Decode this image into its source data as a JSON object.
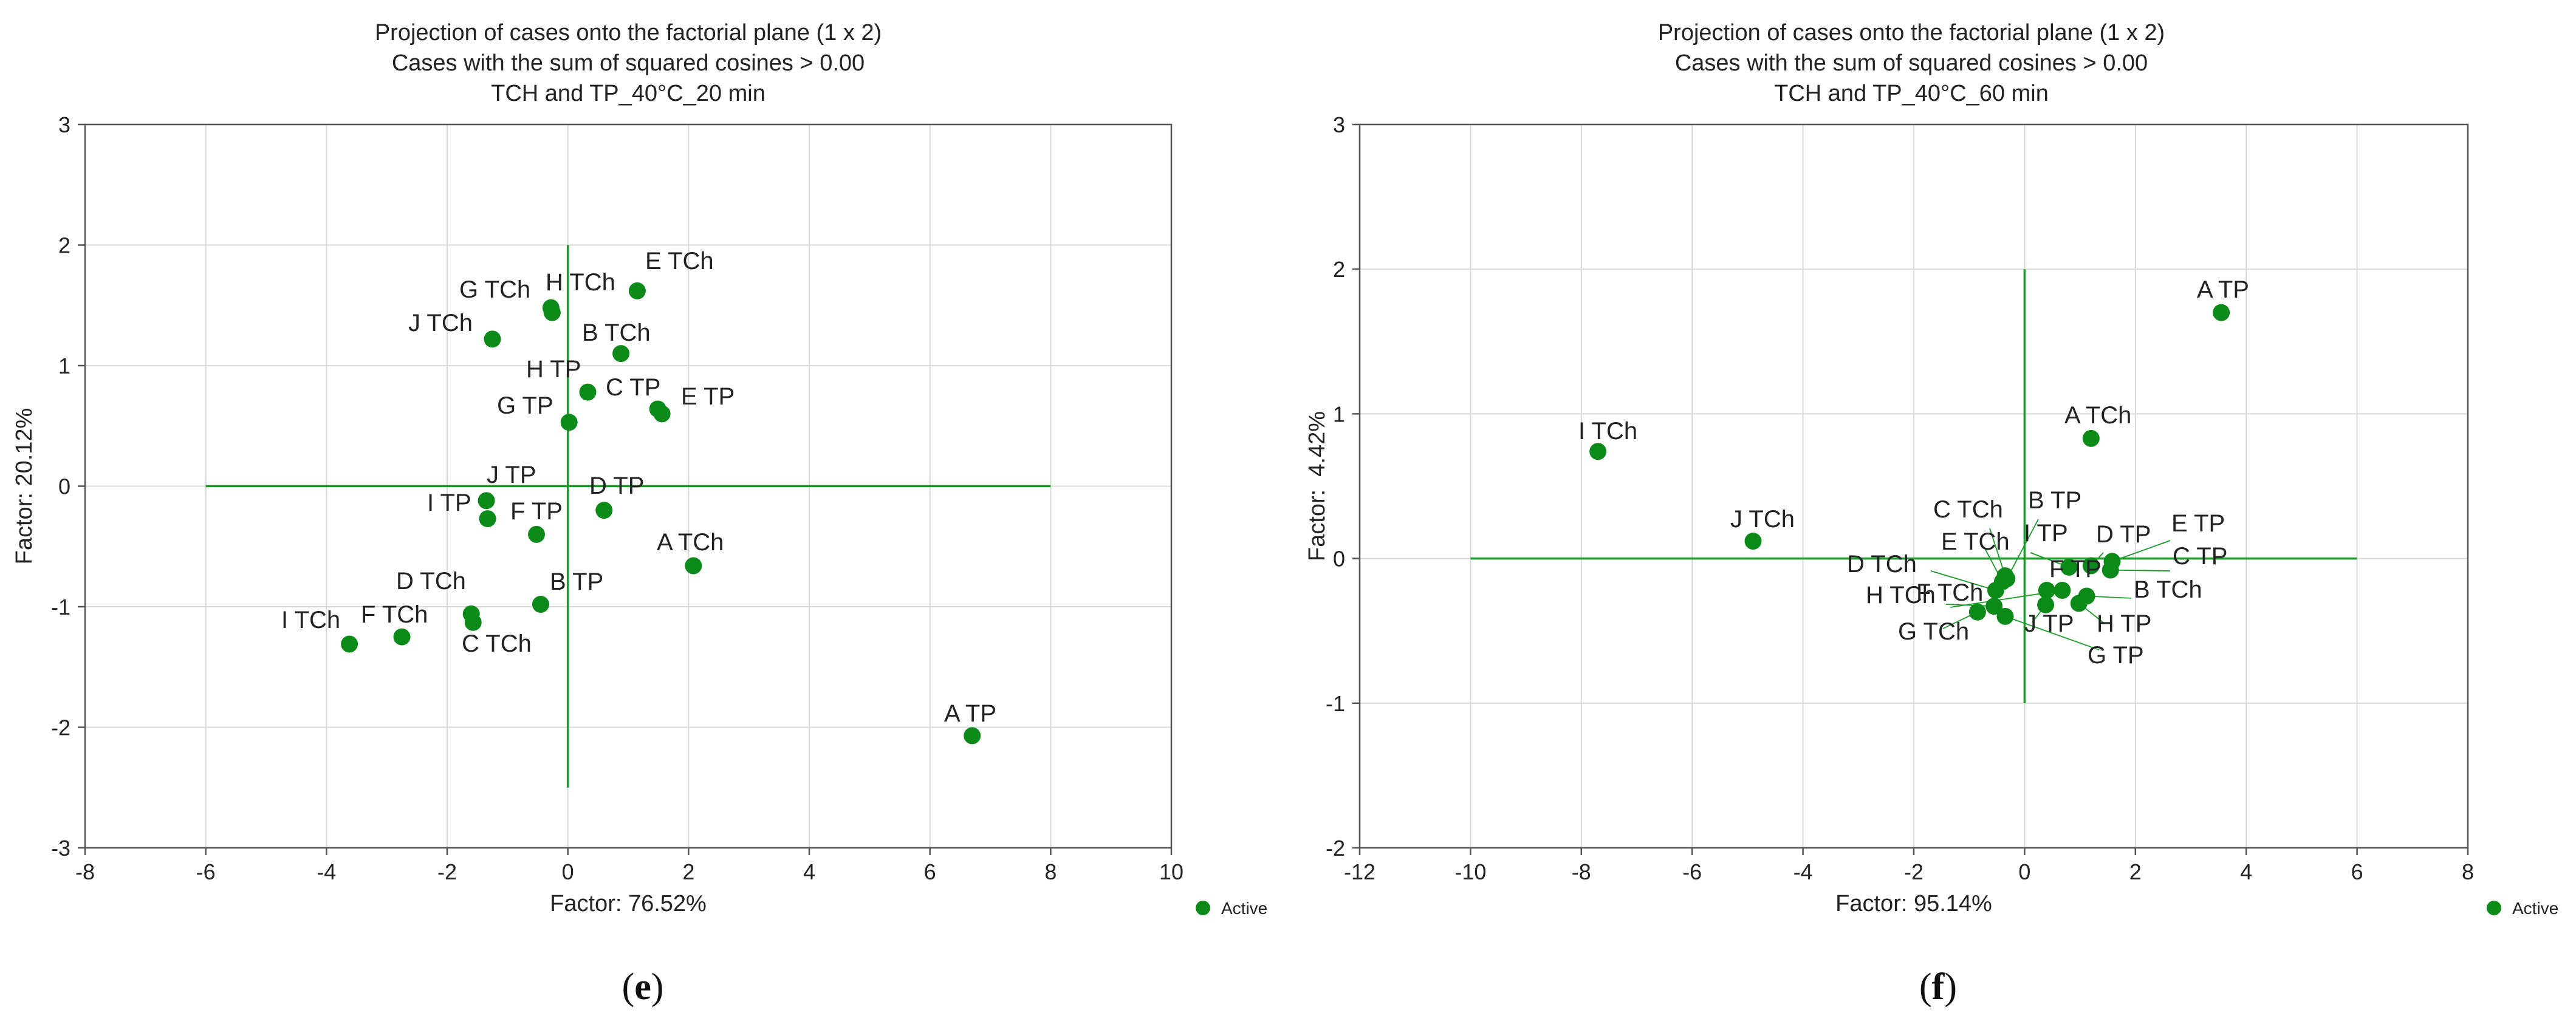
{
  "chart_data": [
    {
      "type": "scatter",
      "title": [
        "Projection of cases onto the factorial plane (1 x 2)",
        "Cases with the sum of squared cosines > 0.00",
        "TCH and TP_40°C_20 min"
      ],
      "xlabel": "Factor: 76.52%",
      "ylabel": "Factor: 20.12%",
      "xlim": [
        -8,
        10
      ],
      "ylim": [
        -3,
        3
      ],
      "xticks": [
        "-8",
        "-6",
        "-4",
        "-2",
        "0",
        "2",
        "4",
        "6",
        "8",
        "10"
      ],
      "yticks": [
        "-3",
        "-2",
        "-1",
        "0",
        "1",
        "2",
        "3"
      ],
      "grid": true,
      "legend": {
        "label": "Active",
        "position": "bottom-right"
      },
      "panel_label": "e",
      "axes_lines": {
        "h": [
          -6,
          8
        ],
        "v": [
          -2.5,
          2.0
        ]
      },
      "points": [
        {
          "label": "E TCh",
          "x": 1.15,
          "y": 1.62
        },
        {
          "label": "G TCh",
          "x": -0.28,
          "y": 1.48
        },
        {
          "label": "H TCh",
          "x": -0.26,
          "y": 1.44
        },
        {
          "label": "J TCh",
          "x": -1.25,
          "y": 1.22
        },
        {
          "label": "B TCh",
          "x": 0.88,
          "y": 1.1
        },
        {
          "label": "H TP",
          "x": 0.33,
          "y": 0.78
        },
        {
          "label": "C TP",
          "x": 1.49,
          "y": 0.64
        },
        {
          "label": "E TP",
          "x": 1.56,
          "y": 0.6
        },
        {
          "label": "G TP",
          "x": 0.02,
          "y": 0.53
        },
        {
          "label": "J TP",
          "x": -1.35,
          "y": -0.12
        },
        {
          "label": "I TP",
          "x": -1.33,
          "y": -0.27
        },
        {
          "label": "F TP",
          "x": -0.52,
          "y": -0.4
        },
        {
          "label": "D TP",
          "x": 0.6,
          "y": -0.2
        },
        {
          "label": "A TCh",
          "x": 2.08,
          "y": -0.66
        },
        {
          "label": "B TP",
          "x": -0.45,
          "y": -0.98
        },
        {
          "label": "D TCh",
          "x": -1.6,
          "y": -1.06
        },
        {
          "label": "C TCh",
          "x": -1.57,
          "y": -1.13
        },
        {
          "label": "F TCh",
          "x": -2.75,
          "y": -1.25
        },
        {
          "label": "I TCh",
          "x": -3.62,
          "y": -1.31
        },
        {
          "label": "A TP",
          "x": 6.7,
          "y": -2.07
        }
      ]
    },
    {
      "type": "scatter",
      "title": [
        "Projection of cases onto the factorial plane (1 x 2)",
        "Cases with the sum of squared cosines > 0.00",
        "TCH and TP_40°C_60 min"
      ],
      "xlabel": "Factor: 95.14%",
      "ylabel": "Factor:  4.42%",
      "xlim": [
        -12,
        8
      ],
      "ylim": [
        -2,
        3
      ],
      "xticks": [
        "-12",
        "-10",
        "-8",
        "-6",
        "-4",
        "-2",
        "0",
        "2",
        "4",
        "6",
        "8"
      ],
      "yticks": [
        "-2",
        "-1",
        "0",
        "1",
        "2",
        "3"
      ],
      "grid": true,
      "legend": {
        "label": "Active",
        "position": "bottom-right"
      },
      "panel_label": "f",
      "axes_lines": {
        "h": [
          -10,
          6
        ],
        "v": [
          -1.0,
          2.0
        ]
      },
      "points": [
        {
          "label": "A TP",
          "x": 3.55,
          "y": 1.7
        },
        {
          "label": "A TCh",
          "x": 1.2,
          "y": 0.83
        },
        {
          "label": "I TCh",
          "x": -7.7,
          "y": 0.74
        },
        {
          "label": "J TCh",
          "x": -4.9,
          "y": 0.12
        },
        {
          "label": "C TCh",
          "x": -0.35,
          "y": -0.12
        },
        {
          "label": "B TP",
          "x": -0.32,
          "y": -0.14
        },
        {
          "label": "E TCh",
          "x": -0.4,
          "y": -0.16
        },
        {
          "label": "I TP",
          "x": 0.8,
          "y": -0.06
        },
        {
          "label": "D TP",
          "x": 1.2,
          "y": -0.05
        },
        {
          "label": "E TP",
          "x": 1.58,
          "y": -0.02
        },
        {
          "label": "C TP",
          "x": 1.55,
          "y": -0.08
        },
        {
          "label": "D TCh",
          "x": -0.52,
          "y": -0.22
        },
        {
          "label": "F TP",
          "x": 0.4,
          "y": -0.22
        },
        {
          "label": "F TCh",
          "x": 0.68,
          "y": -0.22
        },
        {
          "label": "B TCh",
          "x": 1.12,
          "y": -0.26
        },
        {
          "label": "H TCh",
          "x": -0.55,
          "y": -0.33
        },
        {
          "label": "J TP",
          "x": 0.38,
          "y": -0.32
        },
        {
          "label": "G TCh",
          "x": -0.85,
          "y": -0.37
        },
        {
          "label": "H TP",
          "x": 0.98,
          "y": -0.31
        },
        {
          "label": "G TP",
          "x": -0.35,
          "y": -0.4
        }
      ],
      "labels": [
        {
          "point": "A TP",
          "text": "A TP"
        },
        {
          "point": "A TCh",
          "text": "A TCh"
        },
        {
          "point": "I TCh",
          "text": "I TCh"
        },
        {
          "point": "J TCh",
          "text": "J TCh"
        },
        {
          "point": "C TCh",
          "text": "C TCh"
        },
        {
          "point": "B TP",
          "text": "B TP"
        },
        {
          "point": "E TCh",
          "text": "E TCh"
        },
        {
          "point": "I TP",
          "text": "I TP"
        },
        {
          "point": "D TP",
          "text": "D TP"
        },
        {
          "point": "E TP",
          "text": "E TP"
        },
        {
          "point": "C TP",
          "text": "C TP"
        },
        {
          "point": "D TCh",
          "text": "D TCh"
        },
        {
          "point": "F TP",
          "text": "F TP"
        },
        {
          "point": "F TCh",
          "text": "F TCh"
        },
        {
          "point": "B TCh",
          "text": "B TCh"
        },
        {
          "point": "H TCh",
          "text": "H TCh"
        },
        {
          "point": "J TP",
          "text": "J TP"
        },
        {
          "point": "G TCh",
          "text": "G TCh"
        },
        {
          "point": "H TP",
          "text": "H TP"
        },
        {
          "point": "G TP",
          "text": "G TP"
        }
      ]
    }
  ],
  "colors": {
    "point": "#0b8a1a",
    "axis_line": "#1a9a28",
    "grid": "#d9d9d9",
    "frame": "#555555",
    "text": "#222222"
  }
}
